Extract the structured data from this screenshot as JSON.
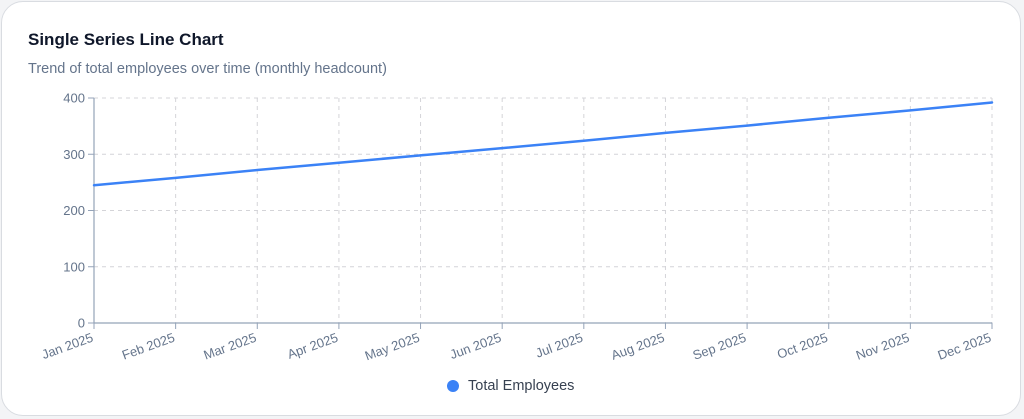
{
  "card": {
    "title": "Single Series Line Chart",
    "subtitle": "Trend of total employees over time (monthly headcount)"
  },
  "legend": {
    "label": "Total Employees",
    "color": "#3b82f6"
  },
  "chart_data": {
    "type": "line",
    "title": "Single Series Line Chart",
    "subtitle": "Trend of total employees over time (monthly headcount)",
    "xlabel": "",
    "ylabel": "",
    "categories": [
      "Jan 2025",
      "Feb 2025",
      "Mar 2025",
      "Apr 2025",
      "May 2025",
      "Jun 2025",
      "Jul 2025",
      "Aug 2025",
      "Sep 2025",
      "Oct 2025",
      "Nov 2025",
      "Dec 2025"
    ],
    "series": [
      {
        "name": "Total Employees",
        "color": "#3b82f6",
        "values": [
          245,
          258,
          272,
          285,
          298,
          311,
          324,
          338,
          351,
          365,
          378,
          392
        ]
      }
    ],
    "ylim": [
      0,
      400
    ],
    "yticks": [
      0,
      100,
      200,
      300,
      400
    ],
    "grid": true,
    "legend_position": "bottom"
  }
}
